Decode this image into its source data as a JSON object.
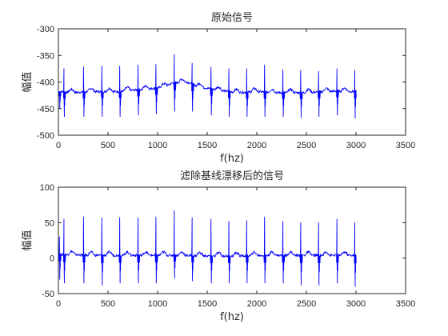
{
  "chart_data": [
    {
      "type": "line",
      "title": "原始信号",
      "xlabel": "f(hz)",
      "ylabel": "幅值",
      "xlim": [
        0,
        3500
      ],
      "ylim": [
        -500,
        -300
      ],
      "xticks": [
        0,
        500,
        1000,
        1500,
        2000,
        2500,
        3000,
        3500
      ],
      "yticks": [
        -300,
        -350,
        -400,
        -450,
        -500
      ],
      "x_range": [
        0,
        3000
      ],
      "line_color": "#0000ff",
      "baseline_points": [
        [
          0,
          -418
        ],
        [
          150,
          -420
        ],
        [
          300,
          -418
        ],
        [
          600,
          -418
        ],
        [
          900,
          -413
        ],
        [
          1050,
          -410
        ],
        [
          1150,
          -402
        ],
        [
          1300,
          -400
        ],
        [
          1400,
          -408
        ],
        [
          1600,
          -415
        ],
        [
          1800,
          -420
        ],
        [
          2000,
          -418
        ],
        [
          2200,
          -420
        ],
        [
          2500,
          -420
        ],
        [
          2800,
          -417
        ],
        [
          3000,
          -418
        ]
      ],
      "beats": [
        {
          "x": 12,
          "r": -418,
          "s": -450
        },
        {
          "x": 58,
          "r": -375,
          "s": -465
        },
        {
          "x": 255,
          "r": -372,
          "s": -465
        },
        {
          "x": 440,
          "r": -370,
          "s": -465
        },
        {
          "x": 620,
          "r": -370,
          "s": -465
        },
        {
          "x": 805,
          "r": -368,
          "s": -462
        },
        {
          "x": 985,
          "r": -367,
          "s": -460
        },
        {
          "x": 1170,
          "r": -348,
          "s": -455
        },
        {
          "x": 1350,
          "r": -365,
          "s": -455
        },
        {
          "x": 1540,
          "r": -372,
          "s": -462
        },
        {
          "x": 1720,
          "r": -375,
          "s": -465
        },
        {
          "x": 1900,
          "r": -375,
          "s": -465
        },
        {
          "x": 2080,
          "r": -368,
          "s": -465
        },
        {
          "x": 2265,
          "r": -377,
          "s": -465
        },
        {
          "x": 2445,
          "r": -378,
          "s": -467
        },
        {
          "x": 2625,
          "r": -380,
          "s": -465
        },
        {
          "x": 2810,
          "r": -375,
          "s": -462
        },
        {
          "x": 2990,
          "r": -378,
          "s": -468
        }
      ],
      "grid": false
    },
    {
      "type": "line",
      "title": "滤除基线漂移后的信号",
      "xlabel": "f(hz)",
      "ylabel": "幅值",
      "xlim": [
        0,
        3500
      ],
      "ylim": [
        -50,
        100
      ],
      "xticks": [
        0,
        500,
        1000,
        1500,
        2000,
        2500,
        3000,
        3500
      ],
      "yticks": [
        100,
        50,
        0,
        -50
      ],
      "x_range": [
        0,
        3000
      ],
      "line_color": "#0000ff",
      "baseline_points": [
        [
          0,
          5
        ],
        [
          150,
          5
        ],
        [
          300,
          4
        ],
        [
          600,
          4
        ],
        [
          900,
          4
        ],
        [
          1200,
          4
        ],
        [
          1500,
          3
        ],
        [
          1800,
          3
        ],
        [
          2100,
          4
        ],
        [
          2400,
          4
        ],
        [
          2700,
          4
        ],
        [
          3000,
          4
        ]
      ],
      "beats": [
        {
          "x": 12,
          "r": 30,
          "s": -30
        },
        {
          "x": 58,
          "r": 55,
          "s": -35
        },
        {
          "x": 255,
          "r": 58,
          "s": -35
        },
        {
          "x": 440,
          "r": 57,
          "s": -38
        },
        {
          "x": 620,
          "r": 57,
          "s": -35
        },
        {
          "x": 805,
          "r": 57,
          "s": -35
        },
        {
          "x": 985,
          "r": 58,
          "s": -35
        },
        {
          "x": 1170,
          "r": 67,
          "s": -28
        },
        {
          "x": 1350,
          "r": 57,
          "s": -32
        },
        {
          "x": 1540,
          "r": 55,
          "s": -35
        },
        {
          "x": 1720,
          "r": 52,
          "s": -35
        },
        {
          "x": 1900,
          "r": 53,
          "s": -35
        },
        {
          "x": 2080,
          "r": 58,
          "s": -35
        },
        {
          "x": 2265,
          "r": 52,
          "s": -35
        },
        {
          "x": 2445,
          "r": 50,
          "s": -38
        },
        {
          "x": 2625,
          "r": 50,
          "s": -38
        },
        {
          "x": 2810,
          "r": 55,
          "s": -35
        },
        {
          "x": 2990,
          "r": 50,
          "s": -40
        }
      ],
      "grid": false
    }
  ]
}
